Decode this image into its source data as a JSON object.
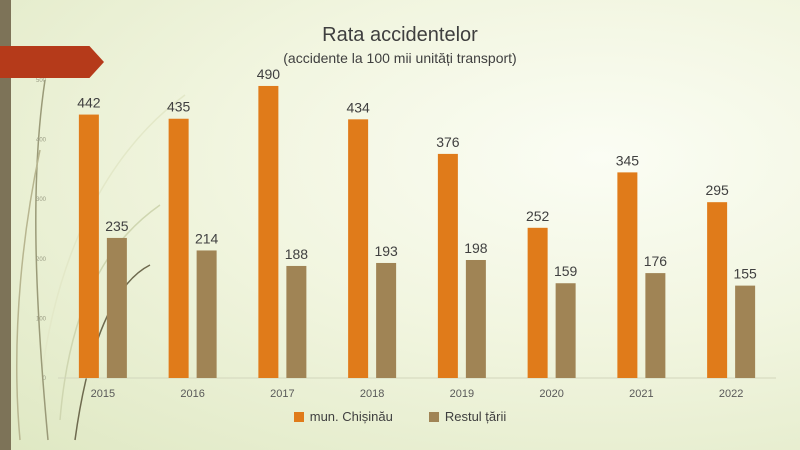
{
  "chart_data": {
    "type": "bar",
    "title": "Rata accidentelor",
    "subtitle": "(accidente la 100 mii unități transport)",
    "categories": [
      "2015",
      "2016",
      "2017",
      "2018",
      "2019",
      "2020",
      "2021",
      "2022"
    ],
    "series": [
      {
        "name": "mun. Chișinău",
        "color": "#e07b1a",
        "values": [
          442,
          435,
          490,
          434,
          376,
          252,
          345,
          295
        ]
      },
      {
        "name": "Restul țării",
        "color": "#a08455",
        "values": [
          235,
          214,
          188,
          193,
          198,
          159,
          176,
          155
        ]
      }
    ],
    "ylim": [
      0,
      500
    ],
    "yticks": [
      0,
      100,
      200,
      300,
      400,
      500
    ],
    "grid": false,
    "legend_position": "bottom"
  }
}
